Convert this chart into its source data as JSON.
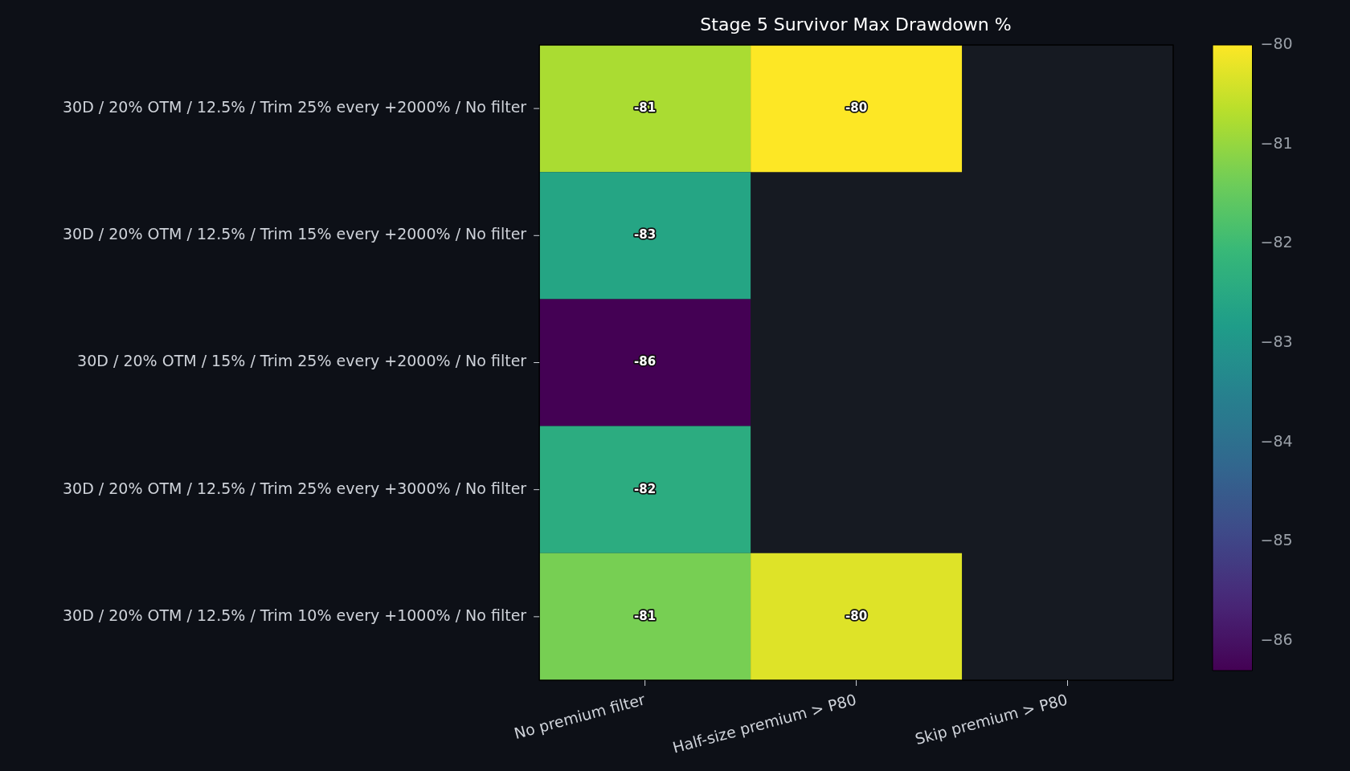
{
  "chart_data": {
    "type": "heatmap",
    "title": "Stage 5 Survivor Max Drawdown %",
    "categories": [
      "No premium filter",
      "Half-size premium > P80",
      "Skip premium > P80"
    ],
    "y_categories": [
      "30D / 20% OTM / 12.5% / Trim 25% every +2000% / No filter",
      "30D / 20% OTM / 12.5% / Trim 15% every +2000% / No filter",
      "30D / 20% OTM / 15% / Trim 25% every +2000% / No filter",
      "30D / 20% OTM / 12.5% / Trim 25% every +3000% / No filter",
      "30D / 20% OTM / 12.5% / Trim 10% every +1000% / No filter"
    ],
    "cells": [
      [
        -80.8,
        -80.0,
        null
      ],
      [
        -82.6,
        null,
        null
      ],
      [
        -86.3,
        null,
        null
      ],
      [
        -82.4,
        null,
        null
      ],
      [
        -81.3,
        -80.3,
        null
      ]
    ],
    "cell_labels": [
      [
        "-81",
        "-80",
        null
      ],
      [
        "-83",
        null,
        null
      ],
      [
        "-86",
        null,
        null
      ],
      [
        "-82",
        null,
        null
      ],
      [
        "-81",
        "-80",
        null
      ]
    ],
    "clim": [
      -86.3,
      -80
    ],
    "cticks": [
      -86,
      -85,
      -84,
      -83,
      -82,
      -81,
      -80
    ]
  }
}
